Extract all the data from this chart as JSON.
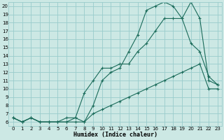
{
  "bg_color": "#cce8e4",
  "grid_color": "#99cccc",
  "line_color": "#1a6b5a",
  "xlabel": "Humidex (Indice chaleur)",
  "xlim": [
    -0.5,
    23.5
  ],
  "ylim": [
    5.5,
    20.5
  ],
  "x_ticks": [
    0,
    1,
    2,
    3,
    4,
    5,
    6,
    7,
    8,
    9,
    10,
    11,
    12,
    13,
    14,
    15,
    16,
    17,
    18,
    19,
    20,
    21,
    22,
    23
  ],
  "y_ticks": [
    6,
    7,
    8,
    9,
    10,
    11,
    12,
    13,
    14,
    15,
    16,
    17,
    18,
    19,
    20
  ],
  "series1_x": [
    0,
    1,
    2,
    3,
    4,
    5,
    6,
    7,
    8,
    9,
    10,
    11,
    12,
    13,
    14,
    15,
    16,
    17,
    18,
    19,
    20,
    21,
    22,
    23
  ],
  "series1_y": [
    6.5,
    6.0,
    6.5,
    6.0,
    6.0,
    6.0,
    6.5,
    6.5,
    6.0,
    7.0,
    7.5,
    8.0,
    8.5,
    9.0,
    9.5,
    10.0,
    10.5,
    11.0,
    11.5,
    12.0,
    12.5,
    13.0,
    10.0,
    10.0
  ],
  "series2_x": [
    0,
    1,
    2,
    3,
    4,
    5,
    6,
    7,
    8,
    9,
    10,
    11,
    12,
    13,
    14,
    15,
    16,
    17,
    18,
    19,
    20,
    21,
    22,
    23
  ],
  "series2_y": [
    6.5,
    6.0,
    6.5,
    6.0,
    6.0,
    6.0,
    6.0,
    6.0,
    6.0,
    8.0,
    11.0,
    12.0,
    12.5,
    14.5,
    16.5,
    19.5,
    20.0,
    20.5,
    20.0,
    18.5,
    20.5,
    18.5,
    11.0,
    10.5
  ],
  "series3_x": [
    0,
    1,
    2,
    3,
    4,
    5,
    6,
    7,
    8,
    9,
    10,
    11,
    12,
    13,
    14,
    15,
    16,
    17,
    18,
    19,
    20,
    21,
    22,
    23
  ],
  "series3_y": [
    6.5,
    6.0,
    6.5,
    6.0,
    6.0,
    6.0,
    6.0,
    6.5,
    9.5,
    11.0,
    12.5,
    12.5,
    13.0,
    13.0,
    14.5,
    15.5,
    17.0,
    18.5,
    18.5,
    18.5,
    15.5,
    14.5,
    11.5,
    10.5
  ]
}
